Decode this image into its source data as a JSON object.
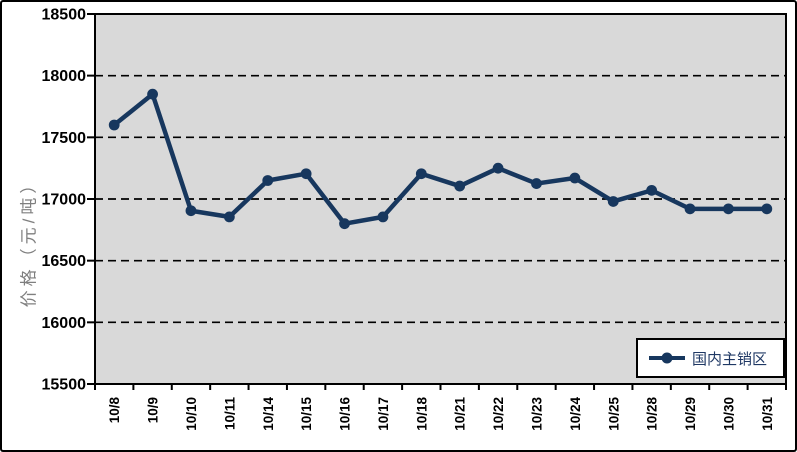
{
  "chart_data": {
    "type": "line",
    "title": "",
    "xlabel": "",
    "ylabel": "价格（元/吨）",
    "categories": [
      "10/8",
      "10/9",
      "10/10",
      "10/11",
      "10/14",
      "10/15",
      "10/16",
      "10/17",
      "10/18",
      "10/21",
      "10/22",
      "10/23",
      "10/24",
      "10/25",
      "10/28",
      "10/29",
      "10/30",
      "10/31"
    ],
    "series": [
      {
        "name": "国内主销区",
        "values": [
          17600,
          17850,
          16905,
          16855,
          17150,
          17205,
          16800,
          16855,
          17205,
          17105,
          17250,
          17125,
          17170,
          16980,
          17070,
          16920,
          16920,
          16920
        ]
      }
    ],
    "ylim": [
      15500,
      18500
    ],
    "yticks": [
      15500,
      16000,
      16500,
      17000,
      17500,
      18000,
      18500
    ],
    "gridlines": {
      "horizontal": true,
      "style": "dashed",
      "at": [
        16000,
        16500,
        17000,
        17500,
        18000
      ]
    },
    "legend_position": "bottom-right-inside"
  },
  "legend": {
    "label": "国内主销区"
  },
  "colors": {
    "series_line": "#17375E",
    "plot_background": "#D9D9D9",
    "gridline": "#000000",
    "axis_text": "#000000",
    "y_title_text": "#7F7F7F",
    "legend_text": "#1F3864",
    "frame_border": "#000000",
    "background": "#FFFFFF"
  }
}
